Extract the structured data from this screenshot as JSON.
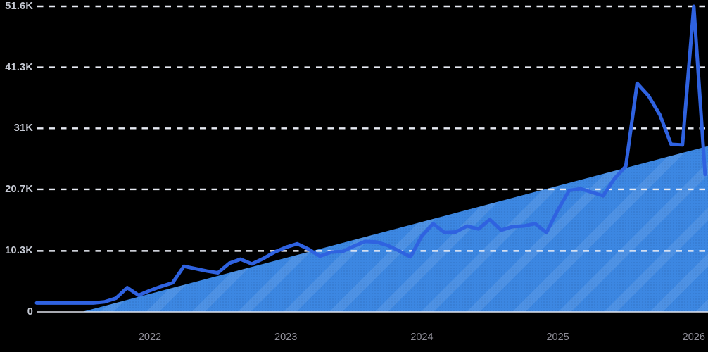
{
  "colors": {
    "background": "#000000",
    "line": "#2f62e0",
    "area_fill": "#3c87e2",
    "gridline": "#e8ebf4",
    "y_axis_label": "#c6cad4",
    "x_axis_label": "#908f99"
  },
  "chart_data": {
    "type": "line",
    "title": "",
    "xlabel": "",
    "ylabel": "",
    "ylim": [
      0,
      51.6
    ],
    "grid": "horizontal-dashed",
    "legend": "none",
    "background": "#000000",
    "yticks": [
      {
        "label": "51.6K",
        "value": 51.6
      },
      {
        "label": "41.3K",
        "value": 41.3
      },
      {
        "label": "31K",
        "value": 31.0
      },
      {
        "label": "20.7K",
        "value": 20.7
      },
      {
        "label": "10.3K",
        "value": 10.3
      },
      {
        "label": "0",
        "value": 0
      }
    ],
    "xticks": [
      {
        "label": "2022",
        "month": "2022-01"
      },
      {
        "label": "2023",
        "month": "2023-01"
      },
      {
        "label": "2024",
        "month": "2024-01"
      },
      {
        "label": "2025",
        "month": "2025-01"
      },
      {
        "label": "2026",
        "month": "2026-01"
      }
    ],
    "months": [
      "2021-03",
      "2021-04",
      "2021-05",
      "2021-06",
      "2021-07",
      "2021-08",
      "2021-09",
      "2021-10",
      "2021-11",
      "2021-12",
      "2022-01",
      "2022-02",
      "2022-03",
      "2022-04",
      "2022-05",
      "2022-06",
      "2022-07",
      "2022-08",
      "2022-09",
      "2022-10",
      "2022-11",
      "2022-12",
      "2023-01",
      "2023-02",
      "2023-03",
      "2023-04",
      "2023-05",
      "2023-06",
      "2023-07",
      "2023-08",
      "2023-09",
      "2023-10",
      "2023-11",
      "2023-12",
      "2024-01",
      "2024-02",
      "2024-03",
      "2024-04",
      "2024-05",
      "2024-06",
      "2024-07",
      "2024-08",
      "2024-09",
      "2024-10",
      "2024-11",
      "2024-12",
      "2025-01",
      "2025-02",
      "2025-03",
      "2025-04",
      "2025-05",
      "2025-06",
      "2025-07",
      "2025-08",
      "2025-09",
      "2025-10",
      "2025-11",
      "2025-12",
      "2026-01",
      "2026-02"
    ],
    "series": [
      {
        "name": "monthly-volume",
        "type": "line",
        "unit": "K",
        "color": "#2f62e0",
        "values": [
          1.5,
          1.5,
          1.5,
          1.5,
          1.5,
          1.5,
          1.7,
          2.3,
          4.1,
          2.8,
          3.6,
          4.3,
          4.9,
          7.7,
          7.3,
          6.9,
          6.6,
          8.2,
          8.9,
          8.1,
          9.0,
          10.1,
          10.9,
          11.5,
          10.6,
          9.4,
          10.1,
          10.2,
          11.1,
          11.9,
          11.8,
          11.2,
          10.3,
          9.3,
          12.8,
          14.9,
          13.4,
          13.5,
          14.5,
          14.0,
          15.6,
          13.8,
          14.4,
          14.5,
          14.9,
          13.4,
          17.2,
          20.5,
          20.8,
          20.2,
          19.6,
          22.5,
          24.6,
          38.6,
          36.5,
          33.3,
          28.3,
          28.2,
          51.6,
          23.2
        ]
      },
      {
        "name": "linear-trend-area",
        "type": "area",
        "unit": "K",
        "color": "#3c87e2",
        "start_month": "2021-07",
        "start_value": 0,
        "end_month": "2026-02",
        "end_value": 28
      }
    ]
  }
}
